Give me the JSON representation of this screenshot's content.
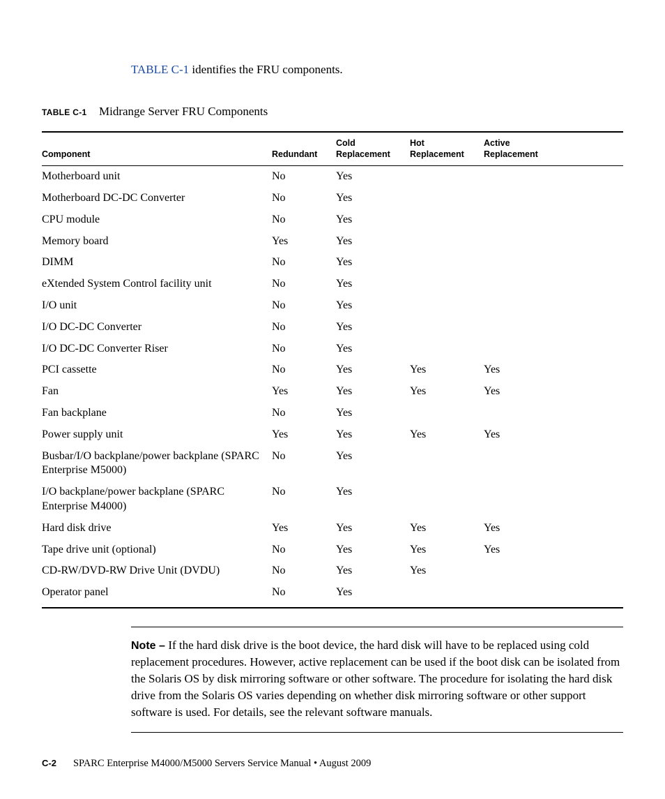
{
  "intro": {
    "link_text": "TABLE C-1",
    "rest": " identifies the FRU components."
  },
  "caption": {
    "label": "TABLE C-1",
    "title": "Midrange Server FRU Components"
  },
  "table": {
    "headers": {
      "component": "Component",
      "redundant": "Redundant",
      "cold": "Cold\nReplacement",
      "hot": "Hot\nReplacement",
      "active": "Active\nReplacement"
    },
    "rows": [
      {
        "component": "Motherboard unit",
        "redundant": "No",
        "cold": "Yes",
        "hot": "",
        "active": ""
      },
      {
        "component": "Motherboard DC-DC Converter",
        "redundant": "No",
        "cold": "Yes",
        "hot": "",
        "active": ""
      },
      {
        "component": "CPU module",
        "redundant": "No",
        "cold": "Yes",
        "hot": "",
        "active": ""
      },
      {
        "component": "Memory board",
        "redundant": "Yes",
        "cold": "Yes",
        "hot": "",
        "active": ""
      },
      {
        "component": "DIMM",
        "redundant": "No",
        "cold": "Yes",
        "hot": "",
        "active": ""
      },
      {
        "component": "eXtended System Control facility unit",
        "redundant": "No",
        "cold": "Yes",
        "hot": "",
        "active": ""
      },
      {
        "component": "I/O unit",
        "redundant": "No",
        "cold": "Yes",
        "hot": "",
        "active": ""
      },
      {
        "component": "I/O DC-DC Converter",
        "redundant": "No",
        "cold": "Yes",
        "hot": "",
        "active": ""
      },
      {
        "component": "I/O DC-DC Converter Riser",
        "redundant": "No",
        "cold": "Yes",
        "hot": "",
        "active": ""
      },
      {
        "component": "PCI cassette",
        "redundant": "No",
        "cold": "Yes",
        "hot": "Yes",
        "active": "Yes"
      },
      {
        "component": "Fan",
        "redundant": "Yes",
        "cold": "Yes",
        "hot": "Yes",
        "active": "Yes"
      },
      {
        "component": "Fan backplane",
        "redundant": "No",
        "cold": "Yes",
        "hot": "",
        "active": ""
      },
      {
        "component": "Power supply unit",
        "redundant": "Yes",
        "cold": "Yes",
        "hot": "Yes",
        "active": "Yes"
      },
      {
        "component": "Busbar/I/O backplane/power backplane (SPARC Enterprise M5000)",
        "redundant": "No",
        "cold": "Yes",
        "hot": "",
        "active": ""
      },
      {
        "component": "I/O backplane/power backplane (SPARC Enterprise M4000)",
        "redundant": "No",
        "cold": "Yes",
        "hot": "",
        "active": ""
      },
      {
        "component": "Hard disk drive",
        "redundant": "Yes",
        "cold": "Yes",
        "hot": "Yes",
        "active": "Yes"
      },
      {
        "component": "Tape drive unit (optional)",
        "redundant": "No",
        "cold": "Yes",
        "hot": "Yes",
        "active": "Yes"
      },
      {
        "component": "CD-RW/DVD-RW Drive Unit (DVDU)",
        "redundant": "No",
        "cold": "Yes",
        "hot": "Yes",
        "active": ""
      },
      {
        "component": "Operator panel",
        "redundant": "No",
        "cold": "Yes",
        "hot": "",
        "active": ""
      }
    ]
  },
  "note": {
    "label": "Note – ",
    "text": "If the hard disk drive is the boot device, the hard disk will have to be replaced using cold replacement procedures. However, active replacement can be used if the boot disk can be isolated from the Solaris OS by disk mirroring software or other software. The procedure for isolating the hard disk drive from the Solaris OS varies depending on whether disk mirroring software or other support software is used. For details, see the relevant software manuals."
  },
  "footer": {
    "page_num": "C-2",
    "text": "SPARC Enterprise M4000/M5000 Servers Service Manual • August 2009"
  }
}
